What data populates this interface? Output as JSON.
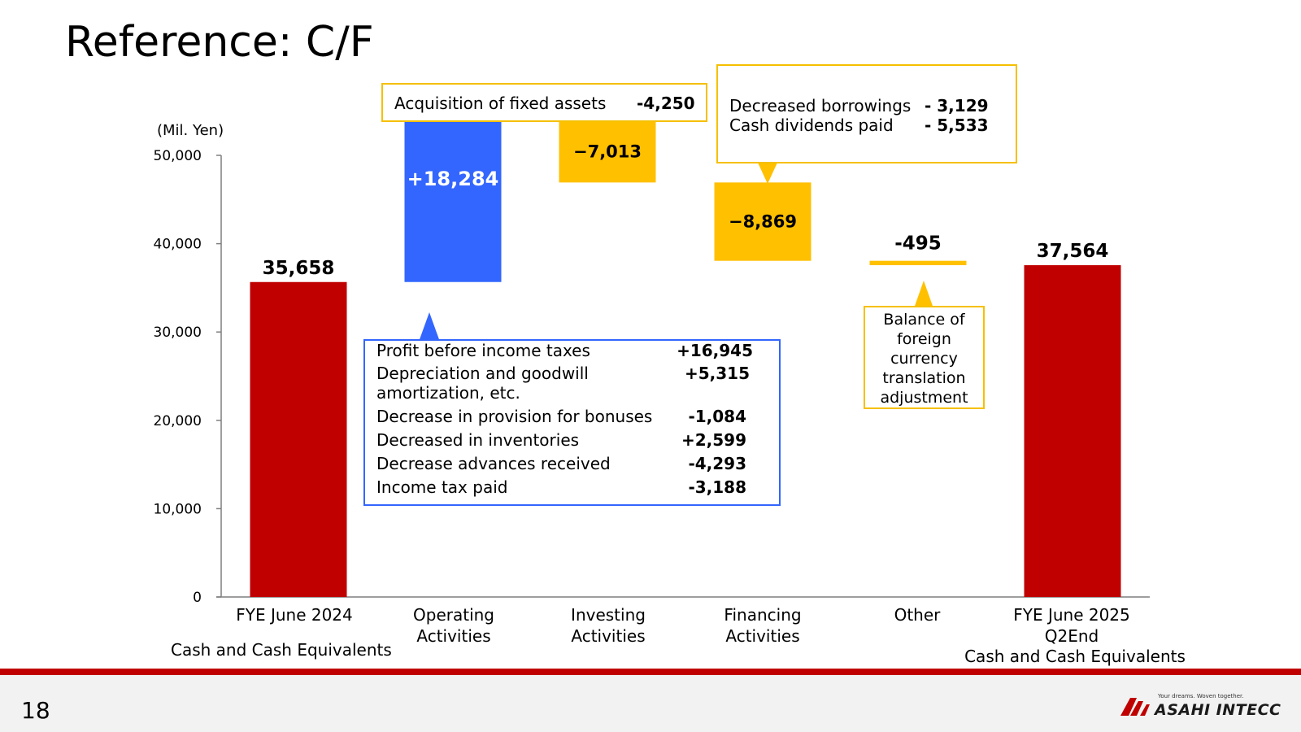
{
  "page": {
    "title": "Reference: C/F",
    "page_number": "18"
  },
  "brand": {
    "tagline": "Your dreams. Woven together.",
    "name": "ASAHI INTECC",
    "accent": "#c00000"
  },
  "colors": {
    "total": "#c00000",
    "positive": "#3366ff",
    "negative": "#ffc000"
  },
  "chart_data": {
    "type": "bar",
    "subtype": "waterfall",
    "unit_label": "(Mil. Yen)",
    "ylim": [
      0,
      50000
    ],
    "yticks": [
      0,
      10000,
      20000,
      30000,
      40000,
      50000
    ],
    "ytick_labels": [
      "0",
      "10,000",
      "20,000",
      "30,000",
      "40,000",
      "50,000"
    ],
    "bars": [
      {
        "category": "FYE June 2024",
        "kind": "total",
        "start": 0,
        "end": 35658,
        "label": "35,658"
      },
      {
        "category": "Operating Activities",
        "kind": "increase",
        "start": 35658,
        "end": 53942,
        "label": "+18,284"
      },
      {
        "category": "Investing Activities",
        "kind": "decrease",
        "start": 53942,
        "end": 46929,
        "label": "−7,013"
      },
      {
        "category": "Financing Activities",
        "kind": "decrease",
        "start": 46929,
        "end": 38060,
        "label": "−8,869"
      },
      {
        "category": "Other",
        "kind": "decrease",
        "start": 38060,
        "end": 37565,
        "label": "-495"
      },
      {
        "category": "FYE June 2025 Q2End",
        "kind": "total",
        "start": 0,
        "end": 37564,
        "label": "37,564"
      }
    ]
  },
  "categories": {
    "fye2024": "FYE June 2024",
    "fye2024_sub": "Cash and Cash Equivalents",
    "operating_l1": "Operating",
    "operating_l2": "Activities",
    "investing_l1": "Investing",
    "investing_l2": "Activities",
    "financing_l1": "Financing",
    "financing_l2": "Activities",
    "other": "Other",
    "fye2025_l1": "FYE June 2025",
    "fye2025_l2": "Q2End",
    "fye2025_sub": "Cash and Cash Equivalents"
  },
  "callouts": {
    "investing": {
      "label": "Acquisition of fixed assets",
      "value": "-4,250"
    },
    "financing": [
      {
        "label": "Decreased borrowings",
        "value": "- 3,129"
      },
      {
        "label": "Cash dividends paid",
        "value": "- 5,533"
      }
    ],
    "operating": [
      {
        "label": "Profit before income taxes",
        "value": "+16,945"
      },
      {
        "label": "Depreciation and goodwill",
        "label2": "amortization, etc.",
        "value": "+5,315"
      },
      {
        "label": "Decrease in provision for bonuses",
        "value": "-1,084"
      },
      {
        "label": "Decreased in inventories",
        "value": "+2,599"
      },
      {
        "label": "Decrease advances received",
        "value": "-4,293"
      },
      {
        "label": "Income tax paid",
        "value": "-3,188"
      }
    ],
    "other": {
      "line1": "Balance of",
      "line2": "foreign",
      "line3": "currency",
      "line4": "translation",
      "line5": "adjustment"
    }
  }
}
